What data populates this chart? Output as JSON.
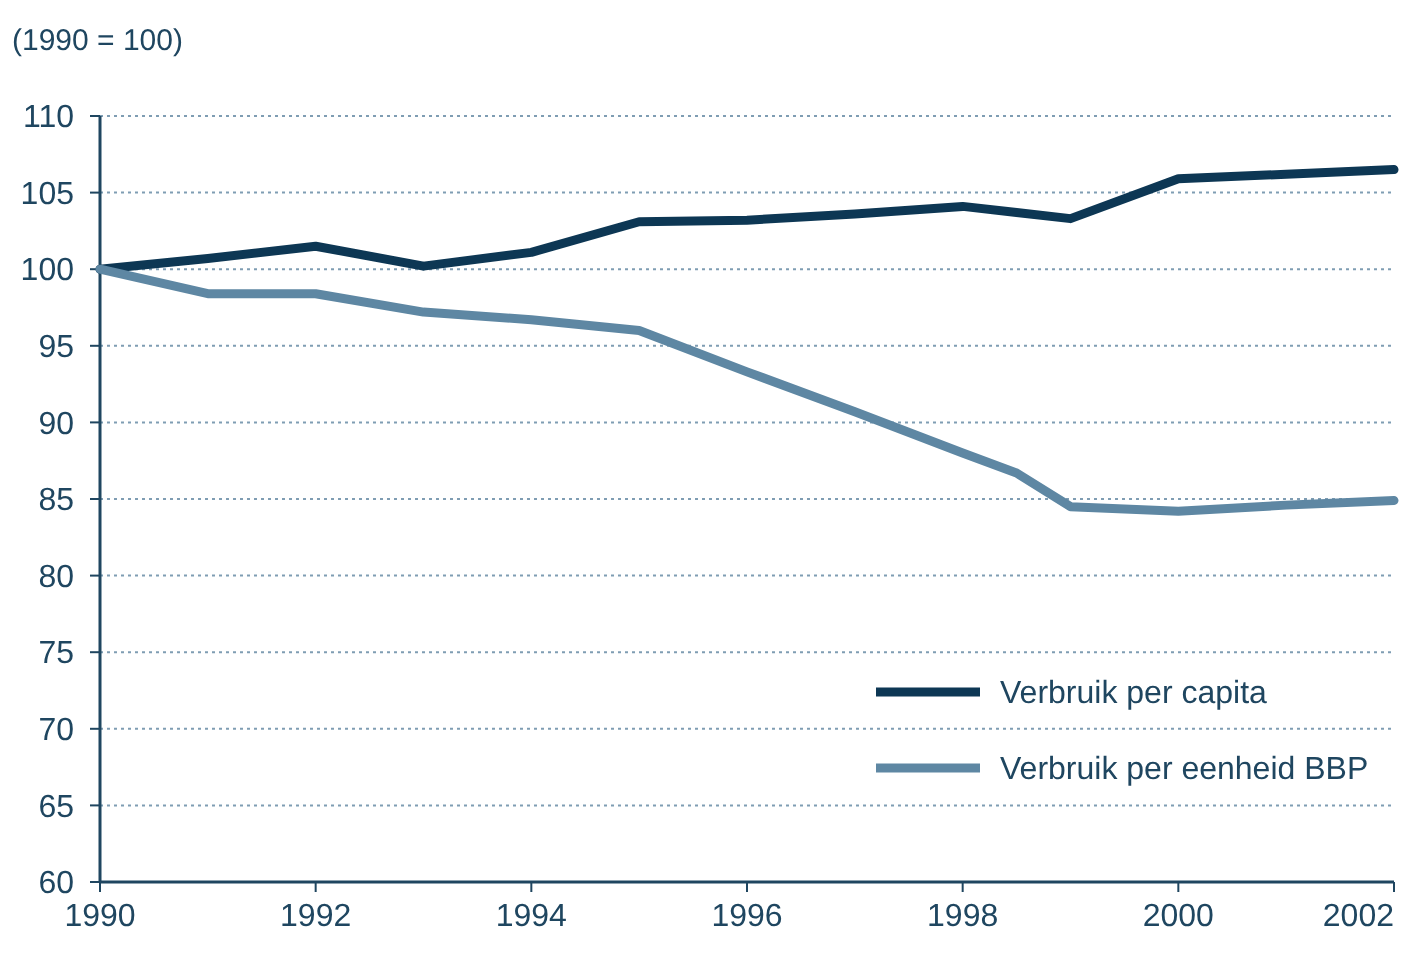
{
  "chart_data": {
    "type": "line",
    "ylabel": "(1990 = 100)",
    "x": [
      1990,
      1991,
      1992,
      1993,
      1994,
      1995,
      1996,
      1997,
      1998,
      1998.5,
      1999,
      2000,
      2001,
      2002
    ],
    "series": [
      {
        "name": "Verbruik per capita",
        "color": "#0d3754",
        "values": [
          100,
          100.7,
          101.5,
          100.2,
          101.1,
          103.1,
          103.2,
          103.6,
          104.1,
          103.7,
          103.3,
          105.9,
          106.2,
          106.5
        ]
      },
      {
        "name": "Verbruik per eenheid BBP",
        "color": "#5e87a3",
        "values": [
          100,
          98.4,
          98.4,
          97.2,
          96.7,
          96.0,
          93.3,
          90.7,
          88.0,
          86.7,
          84.5,
          84.2,
          84.6,
          84.9
        ]
      }
    ],
    "xlim": [
      1990,
      2002
    ],
    "xticks": [
      1990,
      1992,
      1994,
      1996,
      1998,
      2000,
      2002
    ],
    "ylim": [
      60,
      110
    ],
    "yticks": [
      60,
      65,
      70,
      75,
      80,
      85,
      90,
      95,
      100,
      105,
      110
    ],
    "grid": "y",
    "legend": "bottom right",
    "marker": "none",
    "line_style": "solid"
  }
}
